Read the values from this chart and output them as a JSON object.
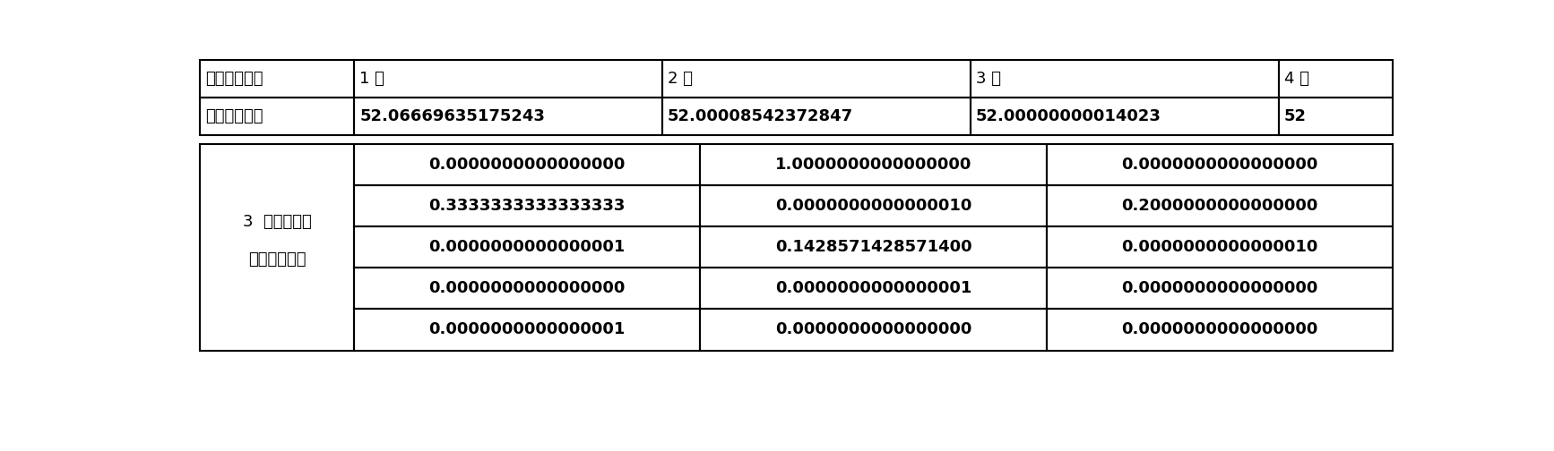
{
  "top_table": {
    "headers": [
      "跟踪迭代次数",
      "1 次",
      "2 次",
      "3 次",
      "4 次"
    ],
    "row2": [
      "频率测量结果",
      "52.06669635175243",
      "52.00008542372847",
      "52.00000000014023",
      "52"
    ]
  },
  "bottom_table": {
    "col0_line1": "3  次跟踪迭代",
    "col0_line2": "谐波测量结果",
    "data": [
      [
        "0.0000000000000000",
        "1.0000000000000000",
        "0.0000000000000000"
      ],
      [
        "0.3333333333333333",
        "0.0000000000000010",
        "0.2000000000000000"
      ],
      [
        "0.0000000000000001",
        "0.1428571428571400",
        "0.0000000000000010"
      ],
      [
        "0.0000000000000000",
        "0.0000000000000001",
        "0.0000000000000000"
      ],
      [
        "0.0000000000000001",
        "0.0000000000000000",
        "0.0000000000000000"
      ]
    ]
  },
  "bg_color": "#ffffff",
  "line_color": "#000000",
  "font_size": 13,
  "bold_font_size": 13
}
